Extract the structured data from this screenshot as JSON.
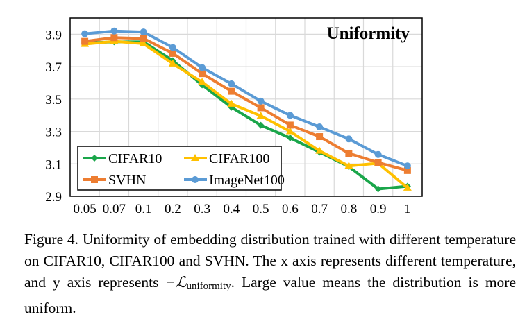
{
  "chart_data": {
    "type": "line",
    "title": "Uniformity",
    "categories": [
      "0.05",
      "0.07",
      "0.1",
      "0.2",
      "0.3",
      "0.4",
      "0.5",
      "0.6",
      "0.7",
      "0.8",
      "0.9",
      "1"
    ],
    "yticks": [
      "2.9",
      "3.1",
      "3.3",
      "3.5",
      "3.7",
      "3.9"
    ],
    "ylim": [
      2.9,
      4.0
    ],
    "grid": true,
    "legend_position": "bottom-left",
    "series": [
      {
        "name": "CIFAR10",
        "color": "#1aa64a",
        "marker": "diamond",
        "values": [
          3.846,
          3.853,
          3.853,
          3.737,
          3.587,
          3.449,
          3.338,
          3.26,
          3.172,
          3.083,
          2.945,
          2.962
        ]
      },
      {
        "name": "CIFAR100",
        "color": "#ffc000",
        "marker": "triangle",
        "values": [
          3.839,
          3.856,
          3.842,
          3.718,
          3.605,
          3.47,
          3.396,
          3.3,
          3.18,
          3.087,
          3.104,
          2.952
        ]
      },
      {
        "name": "SVHN",
        "color": "#ed7d31",
        "marker": "square",
        "values": [
          3.856,
          3.879,
          3.874,
          3.782,
          3.657,
          3.548,
          3.446,
          3.339,
          3.268,
          3.165,
          3.108,
          3.059
        ]
      },
      {
        "name": "ImageNet100",
        "color": "#5b9bd5",
        "marker": "circle",
        "values": [
          3.903,
          3.92,
          3.914,
          3.818,
          3.694,
          3.594,
          3.487,
          3.399,
          3.328,
          3.254,
          3.158,
          3.087
        ]
      }
    ]
  },
  "caption": {
    "label": "Figure 4.",
    "text1": " Uniformity of embedding distribution trained with different temperature on CIFAR10, CIFAR100 and SVHN. The x axis represents different temperature, and y axis represents ",
    "math": "−ℒ",
    "math_sub": "uniformity",
    "text2": ". Large value means the distribution is more uniform."
  }
}
